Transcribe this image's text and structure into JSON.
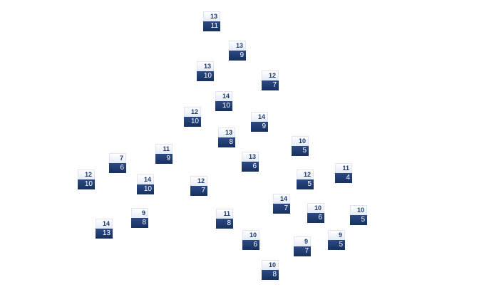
{
  "colors": {
    "top_fill": "#eef2fa",
    "top_text": "#1f3a6e",
    "bottom_fill": "#1f3b70",
    "bottom_text": "#ffffff"
  },
  "nodes": [
    {
      "top": "13",
      "bottom": "11"
    },
    {
      "top": "13",
      "bottom": "9"
    },
    {
      "top": "13",
      "bottom": "10"
    },
    {
      "top": "12",
      "bottom": "7"
    },
    {
      "top": "14",
      "bottom": "10"
    },
    {
      "top": "12",
      "bottom": "10"
    },
    {
      "top": "14",
      "bottom": "9"
    },
    {
      "top": "13",
      "bottom": "8"
    },
    {
      "top": "10",
      "bottom": "5"
    },
    {
      "top": "11",
      "bottom": "9"
    },
    {
      "top": "7",
      "bottom": "6"
    },
    {
      "top": "13",
      "bottom": "6"
    },
    {
      "top": "12",
      "bottom": "10"
    },
    {
      "top": "11",
      "bottom": "4"
    },
    {
      "top": "12",
      "bottom": "5"
    },
    {
      "top": "14",
      "bottom": "10"
    },
    {
      "top": "12",
      "bottom": "7"
    },
    {
      "top": "14",
      "bottom": "7"
    },
    {
      "top": "10",
      "bottom": "6"
    },
    {
      "top": "10",
      "bottom": "5"
    },
    {
      "top": "9",
      "bottom": "8"
    },
    {
      "top": "11",
      "bottom": "8"
    },
    {
      "top": "14",
      "bottom": "13"
    },
    {
      "top": "9",
      "bottom": "5"
    },
    {
      "top": "10",
      "bottom": "6"
    },
    {
      "top": "9",
      "bottom": "7"
    },
    {
      "top": "10",
      "bottom": "8"
    }
  ]
}
